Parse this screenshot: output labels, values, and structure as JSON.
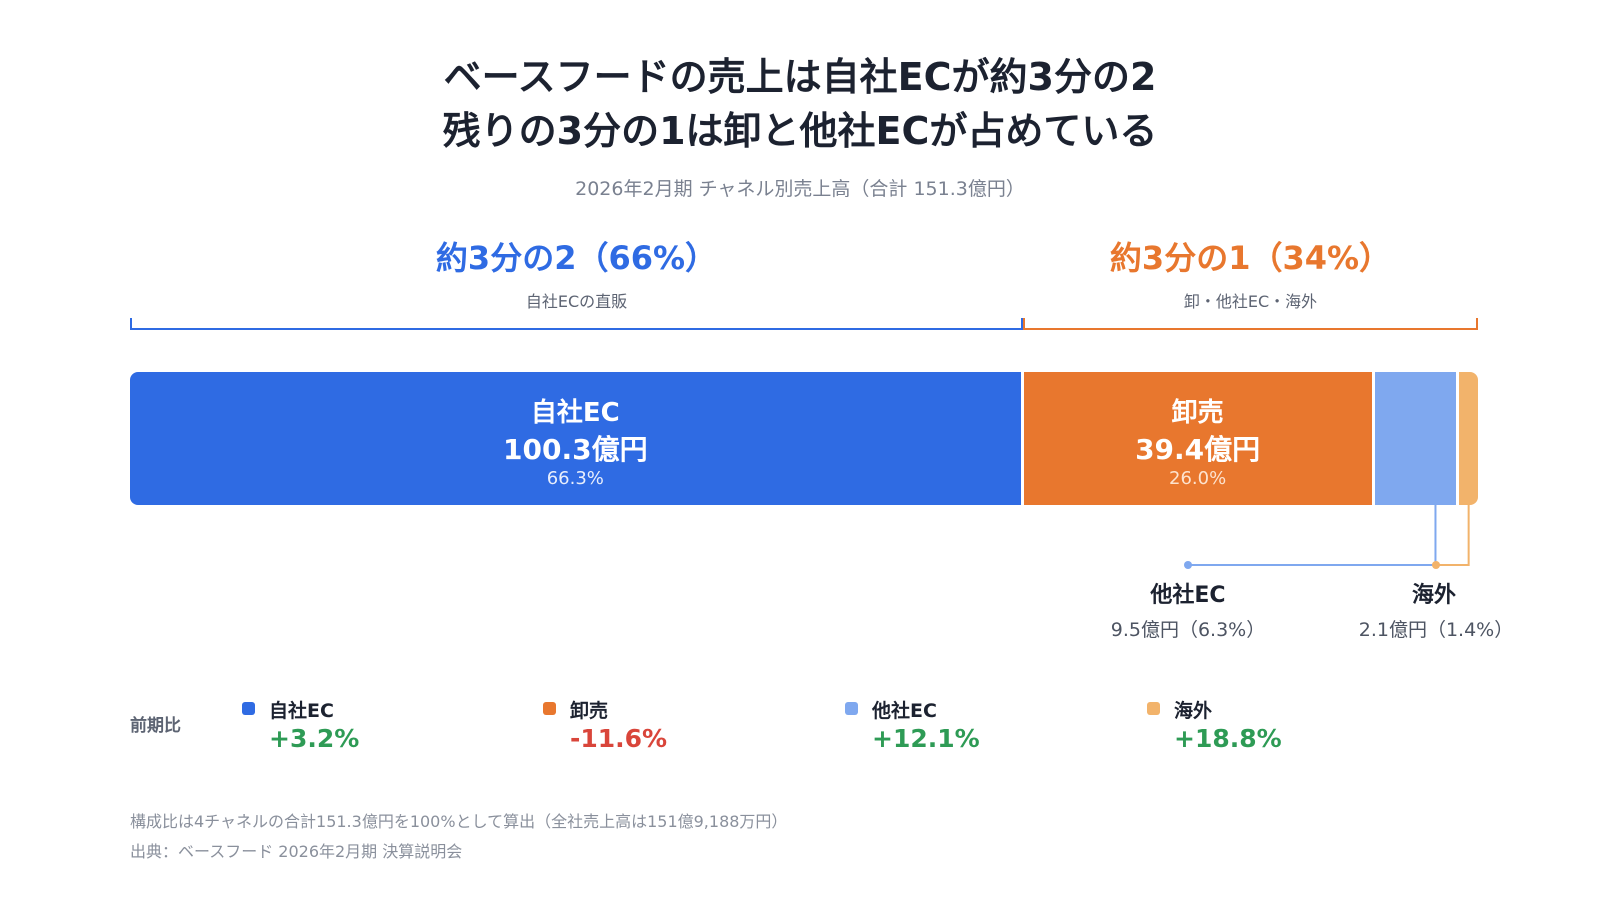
{
  "title_line1": "ベースフードの売上は自社ECが約3分の2",
  "title_line2": "残りの3分の1は卸と他社ECが占めている",
  "subtitle": "2026年2月期 チャネル別売上高（合計 151.3億円）",
  "groups": [
    {
      "headline": "約3分の2（66%）",
      "caption": "自社ECの直販",
      "color": "#2f6be3"
    },
    {
      "headline": "約3分の1（34%）",
      "caption": "卸・他社EC・海外",
      "color": "#e8772e"
    }
  ],
  "chart_data": {
    "type": "bar",
    "orientation": "horizontal-stacked",
    "unit": "億円",
    "total": 151.3,
    "categories": [
      "自社EC",
      "卸売",
      "他社EC",
      "海外"
    ],
    "values": [
      100.3,
      39.4,
      9.5,
      2.1
    ],
    "shares": [
      66.3,
      26.0,
      6.3,
      1.4
    ],
    "colors": [
      "#2f6be3",
      "#e8772e",
      "#7fa8ef",
      "#f2b36b"
    ],
    "segment_labels": [
      {
        "name": "自社EC",
        "value": "100.3億円",
        "pct": "66.3%"
      },
      {
        "name": "卸売",
        "value": "39.4億円",
        "pct": "26.0%"
      }
    ],
    "callouts": [
      {
        "name": "他社EC",
        "value": "9.5億円（6.3%）"
      },
      {
        "name": "海外",
        "value": "2.1億円（1.4%）"
      }
    ]
  },
  "yoy": {
    "label": "前期比",
    "items": [
      {
        "name": "自社EC",
        "value": "+3.2%",
        "color": "#2f6be3",
        "value_color": "#2e9b55"
      },
      {
        "name": "卸売",
        "value": "-11.6%",
        "color": "#e8772e",
        "value_color": "#d9453a"
      },
      {
        "name": "他社EC",
        "value": "+12.1%",
        "color": "#7fa8ef",
        "value_color": "#2e9b55"
      },
      {
        "name": "海外",
        "value": "+18.8%",
        "color": "#f2b36b",
        "value_color": "#2e9b55"
      }
    ]
  },
  "notes": [
    "構成比は4チャネルの合計151.3億円を100%として算出（全社売上高は151億9,188万円）",
    "出典：ベースフード 2026年2月期 決算説明会"
  ]
}
